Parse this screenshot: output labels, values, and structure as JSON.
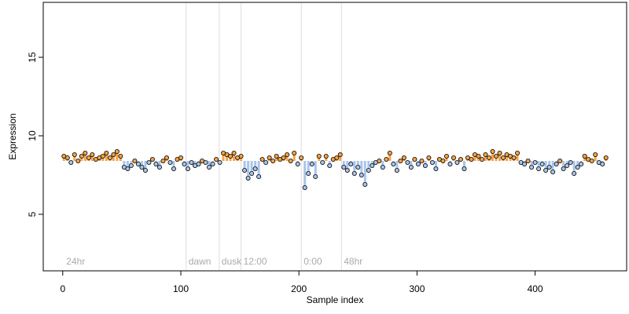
{
  "chart_data": {
    "type": "scatter",
    "xlabel": "Sample index",
    "ylabel": "Expression",
    "xlim": [
      -16.5,
      477.5
    ],
    "ylim": [
      1.4,
      18.5
    ],
    "xticks": [
      0,
      100,
      200,
      300,
      400
    ],
    "yticks": [
      5,
      10,
      15
    ],
    "baseline": 8.4,
    "color_above": "#f5a347",
    "color_below": "#a9c5ea",
    "vline_color": "#dddddd",
    "vlines": [
      104.5,
      132.5,
      151,
      202,
      236
    ],
    "annotations": [
      {
        "text": "24hr",
        "x": 1
      },
      {
        "text": "dawn",
        "x": 104.5
      },
      {
        "text": "dusk",
        "x": 132.5
      },
      {
        "text": "12:00",
        "x": 151
      },
      {
        "text": "0:00",
        "x": 202
      },
      {
        "text": "48hr",
        "x": 236
      }
    ],
    "x": [
      1,
      4,
      7,
      10,
      13,
      16,
      19,
      22,
      25,
      28,
      31,
      34,
      37,
      40,
      43,
      46,
      49,
      52,
      55,
      58,
      61,
      64,
      67,
      70,
      73,
      76,
      79,
      82,
      85,
      88,
      91,
      94,
      97,
      100,
      103,
      106,
      109,
      112,
      115,
      118,
      121,
      124,
      127,
      130,
      133,
      136,
      139,
      142,
      145,
      148,
      151,
      154,
      157,
      160,
      163,
      166,
      169,
      172,
      175,
      178,
      181,
      184,
      187,
      190,
      193,
      196,
      199,
      202,
      205,
      208,
      211,
      214,
      217,
      220,
      223,
      226,
      229,
      232,
      235,
      238,
      241,
      244,
      247,
      250,
      253,
      256,
      259,
      262,
      265,
      268,
      271,
      274,
      277,
      280,
      283,
      286,
      289,
      292,
      295,
      298,
      301,
      304,
      307,
      310,
      313,
      316,
      319,
      322,
      325,
      328,
      331,
      334,
      337,
      340,
      343,
      346,
      349,
      352,
      355,
      358,
      361,
      364,
      367,
      370,
      373,
      376,
      379,
      382,
      385,
      388,
      391,
      394,
      397,
      400,
      403,
      406,
      409,
      412,
      415,
      418,
      421,
      424,
      427,
      430,
      433,
      436,
      439,
      442,
      445,
      448,
      451,
      454,
      457,
      460
    ],
    "values": [
      8.7,
      8.6,
      8.3,
      8.8,
      8.4,
      8.7,
      8.9,
      8.6,
      8.8,
      8.5,
      8.6,
      8.7,
      8.9,
      8.6,
      8.8,
      9.0,
      8.7,
      8.0,
      7.9,
      8.1,
      8.4,
      8.2,
      8.0,
      7.8,
      8.3,
      8.5,
      8.2,
      8.0,
      8.4,
      8.6,
      8.3,
      7.9,
      8.5,
      8.6,
      8.2,
      7.9,
      8.3,
      8.1,
      8.2,
      8.4,
      8.3,
      8.0,
      8.2,
      8.5,
      8.3,
      8.9,
      8.8,
      8.7,
      8.9,
      8.6,
      8.7,
      7.8,
      7.3,
      7.6,
      7.9,
      7.4,
      8.5,
      8.3,
      8.6,
      8.4,
      8.7,
      8.5,
      8.6,
      8.8,
      8.4,
      8.9,
      8.2,
      8.6,
      6.7,
      7.6,
      8.2,
      7.4,
      8.7,
      8.3,
      8.7,
      8.1,
      8.5,
      8.6,
      8.8,
      8.0,
      7.8,
      8.2,
      7.6,
      8.0,
      7.5,
      6.9,
      7.8,
      8.1,
      8.3,
      8.4,
      8.0,
      8.5,
      8.9,
      8.2,
      7.8,
      8.4,
      8.6,
      8.3,
      8.0,
      8.5,
      8.2,
      8.4,
      8.1,
      8.6,
      8.3,
      7.9,
      8.5,
      8.4,
      8.7,
      8.2,
      8.6,
      8.3,
      8.5,
      7.9,
      8.6,
      8.5,
      8.8,
      8.7,
      8.5,
      8.8,
      8.6,
      9.0,
      8.7,
      8.9,
      8.6,
      8.8,
      8.7,
      8.6,
      8.9,
      8.3,
      8.2,
      8.4,
      8.0,
      8.3,
      7.9,
      8.2,
      7.8,
      8.0,
      7.7,
      8.2,
      8.4,
      7.9,
      8.1,
      8.3,
      7.6,
      8.0,
      8.2,
      8.7,
      8.5,
      8.4,
      8.8,
      8.3,
      8.2,
      8.6
    ]
  }
}
